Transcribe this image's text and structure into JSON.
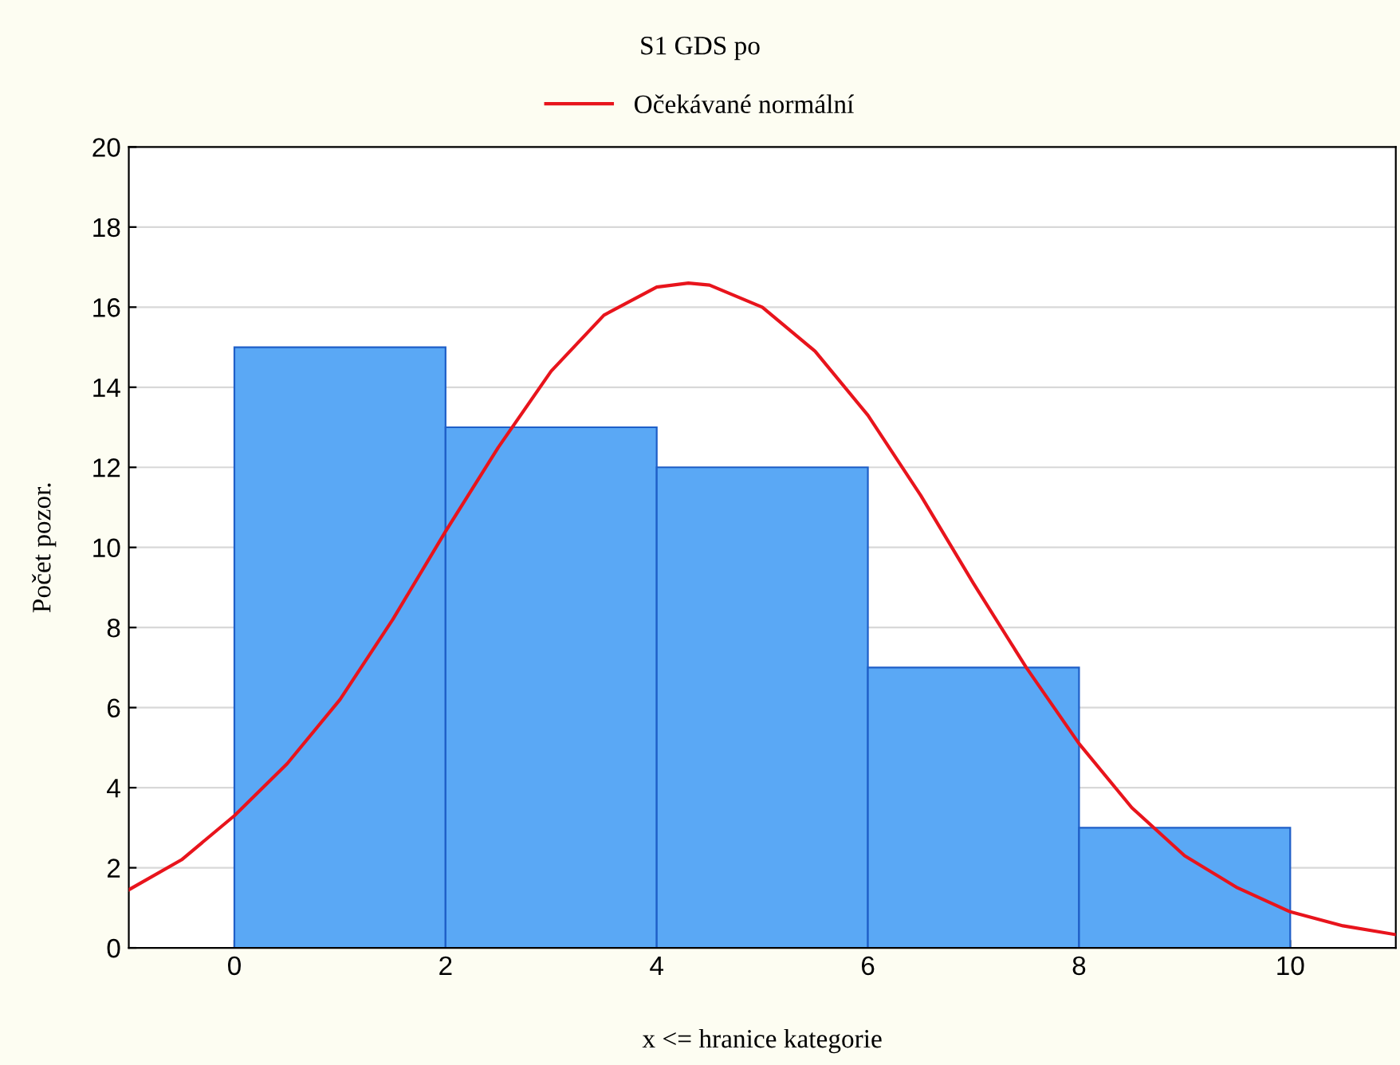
{
  "chart_data": {
    "type": "histogram",
    "title": "S1 GDS po",
    "xlabel": "x <= hranice kategorie",
    "ylabel": "Počet pozor.",
    "series": [
      {
        "bins": [
          0,
          2,
          4,
          6,
          8,
          10
        ],
        "values": [
          15,
          13,
          12,
          7,
          3
        ],
        "color": "#5aa8f5"
      },
      {
        "type": "line",
        "name": "Očekávané normální",
        "color": "#e8141c",
        "x": [
          -1,
          -0.5,
          0,
          0.5,
          1,
          1.5,
          2,
          2.5,
          3,
          3.5,
          4,
          4.3,
          4.5,
          5,
          5.5,
          6,
          6.5,
          7,
          7.5,
          8,
          8.5,
          9,
          9.5,
          10,
          10.5,
          11
        ],
        "values": [
          1.45,
          2.2,
          3.3,
          4.6,
          6.2,
          8.2,
          10.4,
          12.5,
          14.4,
          15.8,
          16.5,
          16.6,
          16.55,
          16.0,
          14.9,
          13.3,
          11.3,
          9.1,
          7.0,
          5.1,
          3.5,
          2.3,
          1.5,
          0.9,
          0.55,
          0.33
        ]
      }
    ],
    "xlim": [
      -1,
      11
    ],
    "ylim": [
      0,
      20
    ],
    "xticks": [
      0,
      2,
      4,
      6,
      8,
      10
    ],
    "yticks": [
      0,
      2,
      4,
      6,
      8,
      10,
      12,
      14,
      16,
      18,
      20
    ],
    "grid": "y",
    "legend": "top"
  }
}
